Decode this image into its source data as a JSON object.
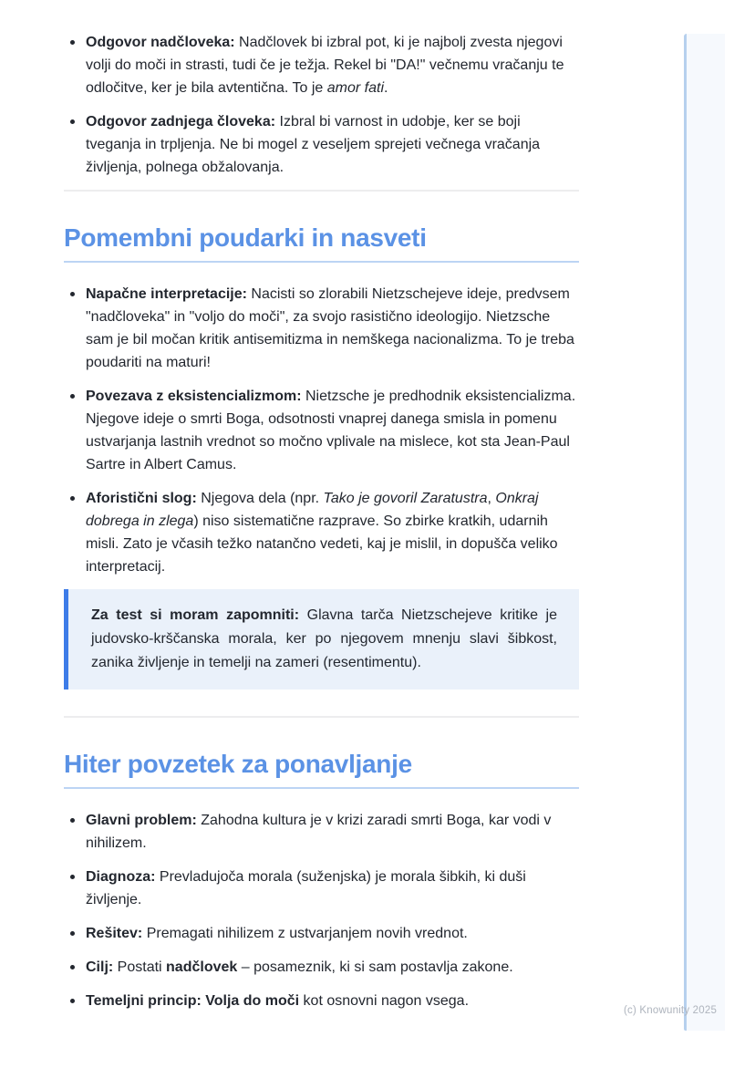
{
  "document": {
    "footer_credit": "(c) Knowunity 2025",
    "sections": [
      {
        "type": "list",
        "items": [
          {
            "segments": [
              {
                "t": "Odgovor nadčloveka: ",
                "b": true
              },
              {
                "t": "Nadčlovek bi izbral pot, ki je najbolj zvesta njegovi volji do moči in strasti, tudi če je težja. Rekel bi \"DA!\" večnemu vračanju te odločitve, ker je bila avtentična. To je "
              },
              {
                "t": "amor fati",
                "i": true
              },
              {
                "t": "."
              }
            ]
          },
          {
            "segments": [
              {
                "t": "Odgovor zadnjega človeka: ",
                "b": true
              },
              {
                "t": "Izbral bi varnost in udobje, ker se boji tveganja in trpljenja. Ne bi mogel z veseljem sprejeti večnega vračanja življenja, polnega obžalovanja."
              }
            ]
          }
        ]
      },
      {
        "type": "divider"
      },
      {
        "type": "heading",
        "text": "Pomembni poudarki in nasveti"
      },
      {
        "type": "list",
        "items": [
          {
            "segments": [
              {
                "t": "Napačne interpretacije: ",
                "b": true
              },
              {
                "t": "Nacisti so zlorabili Nietzschejeve ideje, predvsem \"nadčloveka\" in \"voljo do moči\", za svojo rasistično ideologijo. Nietzsche sam je bil močan kritik antisemitizma in nemškega nacionalizma. To je treba poudariti na maturi!"
              }
            ]
          },
          {
            "segments": [
              {
                "t": "Povezava z eksistencializmom: ",
                "b": true
              },
              {
                "t": "Nietzsche je predhodnik eksistencializma. Njegove ideje o smrti Boga, odsotnosti vnaprej danega smisla in pomenu ustvarjanja lastnih vrednot so močno vplivale na mislece, kot sta Jean-Paul Sartre in Albert Camus."
              }
            ]
          },
          {
            "segments": [
              {
                "t": "Aforistični slog: ",
                "b": true
              },
              {
                "t": "Njegova dela (npr. "
              },
              {
                "t": "Tako je govoril Zaratustra",
                "i": true
              },
              {
                "t": ", "
              },
              {
                "t": "Onkraj dobrega in zlega",
                "i": true
              },
              {
                "t": ") niso sistematične razprave. So zbirke kratkih, udarnih misli. Zato je včasih težko natančno vedeti, kaj je mislil, in dopušča veliko interpretacij."
              }
            ]
          }
        ]
      },
      {
        "type": "callout",
        "segments": [
          {
            "t": "Za test si moram zapomniti: ",
            "b": true
          },
          {
            "t": "Glavna tarča Nietzschejeve kritike je judovsko-krščanska morala, ker po njegovem mnenju slavi šibkost, zanika življenje in temelji na zameri (resentimentu)."
          }
        ]
      },
      {
        "type": "spacer"
      },
      {
        "type": "divider"
      },
      {
        "type": "heading",
        "text": "Hiter povzetek za ponavljanje"
      },
      {
        "type": "list",
        "items": [
          {
            "segments": [
              {
                "t": "Glavni problem: ",
                "b": true
              },
              {
                "t": "Zahodna kultura je v krizi zaradi smrti Boga, kar vodi v nihilizem."
              }
            ]
          },
          {
            "segments": [
              {
                "t": "Diagnoza: ",
                "b": true
              },
              {
                "t": "Prevladujoča morala (suženjska) je morala šibkih, ki duši življenje."
              }
            ]
          },
          {
            "segments": [
              {
                "t": "Rešitev: ",
                "b": true
              },
              {
                "t": "Premagati nihilizem z ustvarjanjem novih vrednot."
              }
            ]
          },
          {
            "segments": [
              {
                "t": "Cilj: ",
                "b": true
              },
              {
                "t": "Postati "
              },
              {
                "t": "nadčlovek",
                "b": true
              },
              {
                "t": " – posameznik, ki si sam postavlja zakone."
              }
            ]
          },
          {
            "segments": [
              {
                "t": "Temeljni princip: Volja do moči",
                "b": true
              },
              {
                "t": " kot osnovni nagon vsega."
              }
            ]
          }
        ]
      }
    ]
  },
  "theme": {
    "heading_blue": "#5b92e5",
    "heading_underline": "#bcd4f4",
    "divider": "#ededee",
    "body_text": "#23272f",
    "callout_bg": "#eaf1fa",
    "callout_border": "#3d7ce8",
    "side_panel_bg": "#f6f9fd",
    "side_panel_border": "#b6d0ee",
    "footer_text": "#aeb4bd"
  }
}
